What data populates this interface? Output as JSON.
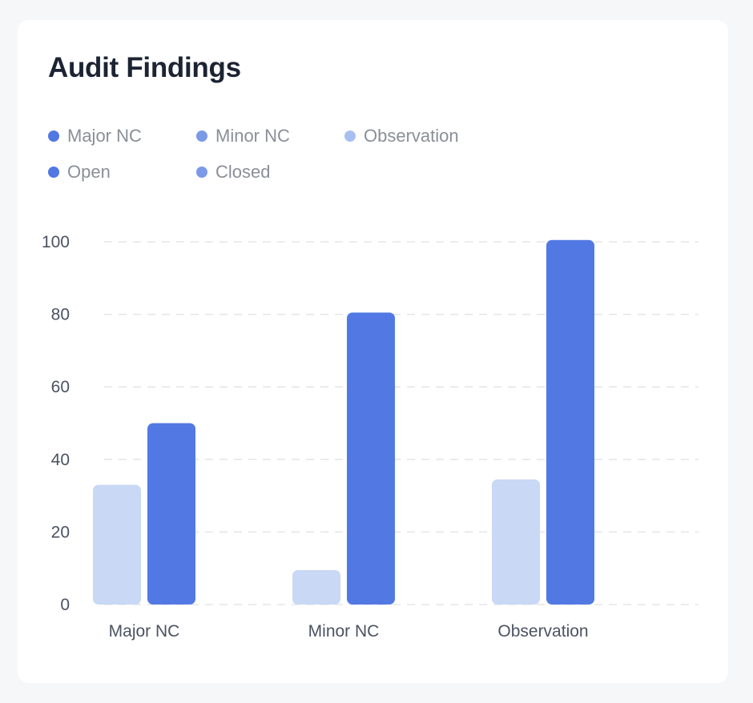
{
  "card": {
    "title": "Audit Findings"
  },
  "legend": {
    "rows": [
      [
        {
          "label": "Major NC",
          "color": "#5077e2"
        },
        {
          "label": "Minor NC",
          "color": "#7a9ae8"
        },
        {
          "label": "Observation",
          "color": "#a8c0f0"
        }
      ],
      [
        {
          "label": "Open",
          "color": "#5077e2"
        },
        {
          "label": "Closed",
          "color": "#7a9ae8"
        }
      ]
    ]
  },
  "chart_data": {
    "type": "bar",
    "categories": [
      "Major NC",
      "Minor NC",
      "Observation"
    ],
    "series": [
      {
        "name": "Closed",
        "values": [
          33,
          9.5,
          34.5
        ],
        "color": "#c8d8f5"
      },
      {
        "name": "Open",
        "values": [
          50,
          80.5,
          100.5
        ],
        "color": "#5279e3"
      }
    ],
    "yticks": [
      0,
      20,
      40,
      60,
      80,
      100
    ],
    "ylim": [
      0,
      100
    ],
    "grid": true,
    "gridStyle": "dashed"
  }
}
